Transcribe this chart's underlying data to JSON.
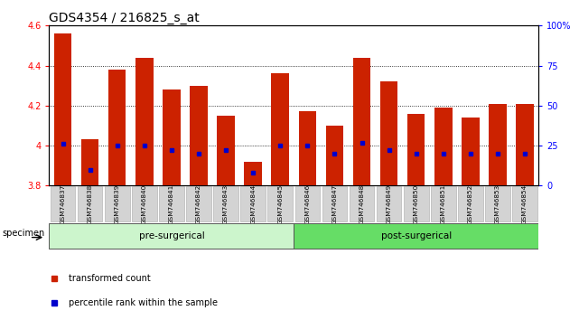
{
  "title": "GDS4354 / 216825_s_at",
  "samples": [
    "GSM746837",
    "GSM746838",
    "GSM746839",
    "GSM746840",
    "GSM746841",
    "GSM746842",
    "GSM746843",
    "GSM746844",
    "GSM746845",
    "GSM746846",
    "GSM746847",
    "GSM746848",
    "GSM746849",
    "GSM746850",
    "GSM746851",
    "GSM746852",
    "GSM746853",
    "GSM746854"
  ],
  "transformed_count": [
    4.56,
    4.03,
    4.38,
    4.44,
    4.28,
    4.3,
    4.15,
    3.92,
    4.36,
    4.17,
    4.1,
    4.44,
    4.32,
    4.16,
    4.19,
    4.14,
    4.21,
    4.21
  ],
  "percentile_rank": [
    26,
    10,
    25,
    25,
    22,
    20,
    22,
    8,
    25,
    25,
    20,
    27,
    22,
    20,
    20,
    20,
    20,
    20
  ],
  "pre_count": 9,
  "ylim_left": [
    3.8,
    4.6
  ],
  "ylim_right": [
    0,
    100
  ],
  "bar_color": "#CC2200",
  "marker_color": "#0000CC",
  "bar_bottom": 3.8,
  "right_yticks": [
    0,
    25,
    50,
    75,
    100
  ],
  "right_yticklabels": [
    "0",
    "25",
    "50",
    "75",
    "100%"
  ],
  "left_yticks": [
    3.8,
    4.0,
    4.2,
    4.4,
    4.6
  ],
  "left_yticklabels": [
    "3.8",
    "4",
    "4.2",
    "4.4",
    "4.6"
  ],
  "title_fontsize": 10,
  "tick_fontsize": 7,
  "legend_items": [
    "transformed count",
    "percentile rank within the sample"
  ],
  "legend_colors": [
    "#CC2200",
    "#0000CC"
  ],
  "specimen_label": "specimen",
  "group_label_pre": "pre-surgerical",
  "group_label_post": "post-surgerical",
  "pre_color": "#ccf5cc",
  "post_color": "#66dd66",
  "cell_color": "#d3d3d3",
  "cell_edge_color": "#aaaaaa"
}
